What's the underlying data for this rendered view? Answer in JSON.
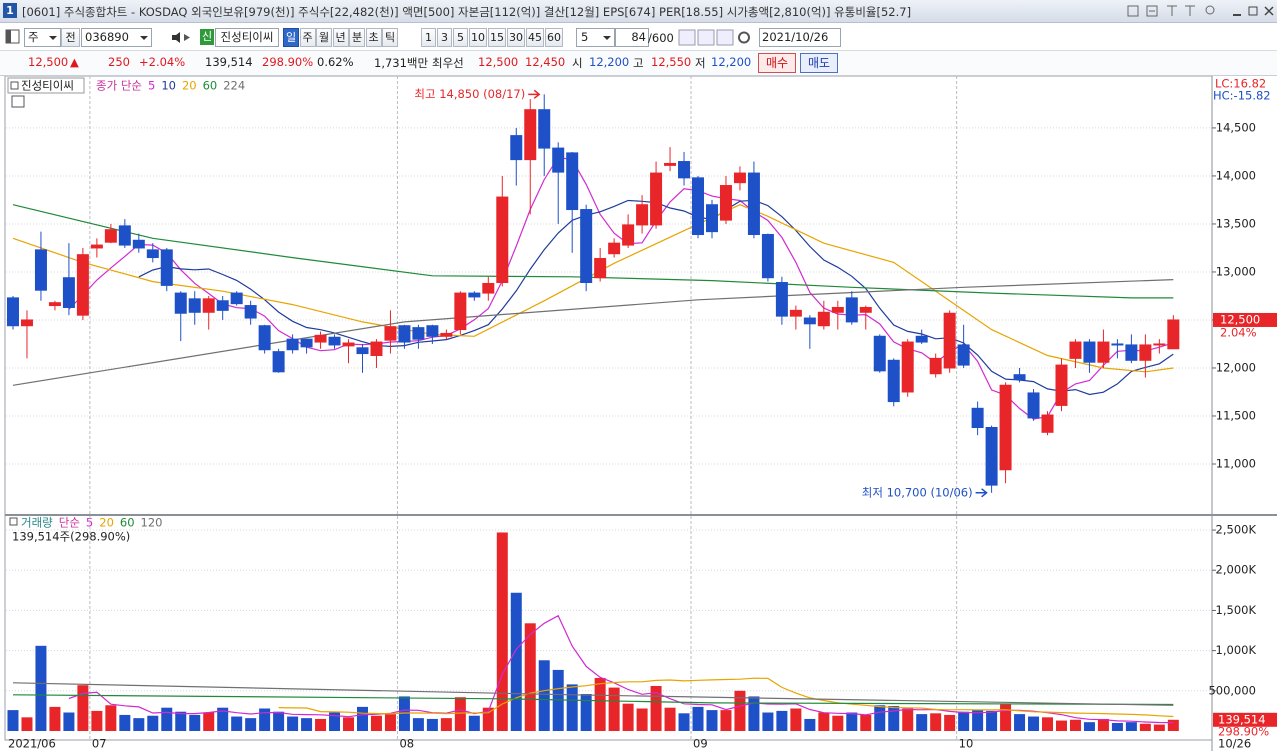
{
  "window": {
    "number": "1",
    "title": "[0601] 주식종합차트 - KOSDAQ 외국인보유[979(천)] 주식수[22,482(천)] 액면[500] 자본금[112(억)] 결산[12월] EPS[674] PER[18.55] 시가총액[2,810(억)] 유통비율[52.7]"
  },
  "toolbar": {
    "period": "주",
    "prev": "전",
    "code": "036890",
    "badge": "신",
    "name": "진성티이씨",
    "intervals": [
      "일",
      "주",
      "월",
      "년",
      "분",
      "초",
      "틱"
    ],
    "counts": [
      "1",
      "3",
      "5",
      "10",
      "15",
      "30",
      "45",
      "60"
    ],
    "step": "5",
    "shown": "84",
    "total": "/600",
    "date": "2021/10/26"
  },
  "quote": {
    "price": "12,500",
    "arrow": "▲",
    "change": "250",
    "change_pct": "+2.04%",
    "volume": "139,514",
    "volume_ratio": "298.90%",
    "turnover": "0.62%",
    "amount": "1,731백만",
    "best_label": "최우선",
    "ask": "12,500",
    "bid": "12,450",
    "open_label": "시",
    "open": "12,200",
    "high_label": "고",
    "high": "12,550",
    "low_label": "저",
    "low": "12,200",
    "buy": "매수",
    "sell": "매도"
  },
  "chart_data": [
    {
      "type": "candlestick",
      "title": "진성티이씨",
      "legend_label": "종가 단순",
      "up_color": "#e8262a",
      "down_color": "#1e50c8",
      "open": [
        12730,
        12440,
        13230,
        12650,
        12940,
        12550,
        13250,
        13310,
        13480,
        13330,
        13230,
        13230,
        12780,
        12720,
        12580,
        12700,
        12780,
        12650,
        12440,
        12170,
        12300,
        12300,
        12270,
        12320,
        12230,
        12210,
        12130,
        12290,
        12440,
        12420,
        12440,
        12330,
        12400,
        12780,
        12780,
        12890,
        14420,
        14170,
        14690,
        14290,
        14240,
        13650,
        12940,
        13190,
        13280,
        13490,
        13490,
        14110,
        14150,
        13980,
        13700,
        13540,
        13930,
        14030,
        13390,
        12890,
        12540,
        12520,
        12440,
        12580,
        12730,
        12580,
        12330,
        12080,
        11750,
        12330,
        11940,
        12000,
        12240,
        11580,
        11380,
        10940,
        11930,
        11740,
        11330,
        11610,
        12100,
        12270,
        12060,
        12250,
        12240,
        12080,
        12240,
        12200
      ],
      "high": [
        12750,
        12600,
        13420,
        12700,
        13300,
        13250,
        13350,
        13500,
        13550,
        13400,
        13300,
        13250,
        12800,
        12800,
        12750,
        12750,
        12800,
        12700,
        12450,
        12200,
        12350,
        12300,
        12380,
        12350,
        12300,
        12250,
        12300,
        12600,
        12450,
        12450,
        12450,
        12400,
        12800,
        12800,
        12950,
        14000,
        14500,
        14800,
        14850,
        14350,
        14250,
        13700,
        13250,
        13350,
        13600,
        13800,
        14150,
        14300,
        14250,
        14000,
        13750,
        14000,
        14100,
        14150,
        13400,
        12950,
        12650,
        12550,
        12700,
        12700,
        12800,
        12650,
        12350,
        12100,
        12300,
        12400,
        12150,
        12600,
        12450,
        11650,
        11400,
        11850,
        12000,
        11780,
        11550,
        12100,
        12300,
        12300,
        12400,
        12300,
        12350,
        12350,
        12300,
        12550
      ],
      "low": [
        12400,
        12100,
        12700,
        12600,
        12550,
        12500,
        13150,
        13300,
        13250,
        13200,
        13100,
        12800,
        12280,
        12450,
        12400,
        12500,
        12650,
        12450,
        12150,
        11950,
        12150,
        12150,
        12200,
        12200,
        12050,
        11950,
        12000,
        12150,
        12200,
        12200,
        12250,
        12300,
        12350,
        12700,
        12700,
        12850,
        13900,
        13600,
        14000,
        13500,
        13200,
        12800,
        12900,
        13150,
        13250,
        13400,
        13450,
        14050,
        13900,
        13350,
        13350,
        13500,
        13850,
        13350,
        12900,
        12450,
        12400,
        12200,
        12400,
        12400,
        12450,
        12400,
        11950,
        11600,
        11700,
        12250,
        11900,
        11950,
        12000,
        11300,
        10700,
        10800,
        11850,
        11450,
        11300,
        11550,
        12000,
        11950,
        12000,
        12100,
        12050,
        11900,
        12150,
        12200
      ],
      "close": [
        12440,
        12500,
        12810,
        12680,
        12630,
        13180,
        13280,
        13440,
        13280,
        13250,
        13150,
        12860,
        12570,
        12580,
        12720,
        12600,
        12670,
        12520,
        12190,
        11960,
        12190,
        12220,
        12340,
        12240,
        12260,
        12150,
        12270,
        12430,
        12270,
        12300,
        12330,
        12360,
        12780,
        12740,
        12880,
        13780,
        14170,
        14690,
        14290,
        14040,
        13650,
        12890,
        13140,
        13300,
        13490,
        13700,
        14030,
        14130,
        13980,
        13390,
        13420,
        13900,
        14030,
        13390,
        12940,
        12540,
        12600,
        12460,
        12580,
        12630,
        12480,
        12630,
        11970,
        11650,
        12270,
        12270,
        12100,
        12570,
        12030,
        11380,
        10780,
        11820,
        11880,
        11480,
        11510,
        12030,
        12270,
        12060,
        12270,
        12240,
        12080,
        12240,
        12250,
        12500
      ],
      "ma": [
        {
          "name": "5",
          "color": "#d22ad2"
        },
        {
          "name": "10",
          "color": "#1e3c9c"
        },
        {
          "name": "20",
          "color": "#e8a400",
          "x": [
            0,
            5,
            10,
            15,
            20,
            25,
            30,
            33,
            38,
            43,
            48,
            52,
            54,
            58,
            63,
            67,
            70,
            74,
            78,
            81,
            83
          ],
          "values": [
            13350,
            13100,
            12900,
            12800,
            12660,
            12480,
            12350,
            12330,
            12700,
            13090,
            13430,
            13700,
            13580,
            13300,
            13100,
            12700,
            12400,
            12130,
            12000,
            11960,
            12000
          ]
        },
        {
          "name": "60",
          "color": "#1f8a3a",
          "x": [
            0,
            10,
            20,
            30,
            40,
            50,
            60,
            70,
            80,
            83
          ],
          "values": [
            13700,
            13350,
            13150,
            12960,
            12950,
            12910,
            12840,
            12780,
            12730,
            12730
          ]
        },
        {
          "name": "224",
          "color": "#707070",
          "x": [
            0,
            28,
            49,
            68,
            83
          ],
          "values": [
            11820,
            12480,
            12710,
            12840,
            12920
          ]
        }
      ],
      "ylim": [
        10500,
        15020
      ],
      "yticks": [
        {
          "value": 11000,
          "label": "11,000"
        },
        {
          "value": 11500,
          "label": "11,500"
        },
        {
          "value": 12000,
          "label": "12,000"
        },
        {
          "value": 12500,
          "label": "12,500"
        },
        {
          "value": 13000,
          "label": "13,000"
        },
        {
          "value": 13500,
          "label": "13,500"
        },
        {
          "value": 14000,
          "label": "14,000"
        },
        {
          "value": 14500,
          "label": "14,500"
        }
      ],
      "grid": true,
      "annotations": [
        {
          "text": "최고 14,850 (08/17)",
          "x": 38,
          "value": 14850,
          "color": "#e8262a"
        },
        {
          "text": "최저 10,700 (10/06)",
          "x": 70,
          "value": 10700,
          "color": "#1e50c8"
        }
      ],
      "lc": "LC:16.82",
      "hc": "HC:-15.82",
      "last_label": "12,500",
      "last_pct": "2.04%"
    },
    {
      "type": "bar",
      "title": "거래량",
      "legend_label": "단순",
      "info": "139,514주(298.90%)",
      "categories": [
        "2021/06",
        null,
        null,
        null,
        null,
        null,
        "07",
        null,
        null,
        null,
        null,
        null,
        null,
        null,
        null,
        null,
        null,
        null,
        null,
        null,
        null,
        null,
        null,
        null,
        null,
        null,
        null,
        null,
        "08",
        null,
        null,
        null,
        null,
        null,
        null,
        null,
        null,
        null,
        null,
        null,
        null,
        null,
        null,
        null,
        null,
        null,
        null,
        null,
        null,
        "09",
        null,
        null,
        null,
        null,
        null,
        null,
        null,
        null,
        null,
        null,
        null,
        null,
        null,
        null,
        null,
        null,
        null,
        null,
        "10",
        null,
        null,
        null,
        null,
        null,
        null,
        null,
        null,
        null,
        null,
        null,
        null,
        null,
        null,
        null
      ],
      "end_label": "10/26",
      "values": [
        260000,
        170000,
        1060000,
        300000,
        230000,
        570000,
        250000,
        320000,
        200000,
        160000,
        190000,
        290000,
        240000,
        200000,
        230000,
        290000,
        180000,
        160000,
        280000,
        240000,
        180000,
        160000,
        150000,
        230000,
        170000,
        300000,
        190000,
        210000,
        430000,
        160000,
        150000,
        160000,
        420000,
        190000,
        290000,
        2470000,
        1720000,
        1340000,
        880000,
        760000,
        580000,
        460000,
        660000,
        540000,
        340000,
        280000,
        560000,
        290000,
        220000,
        300000,
        260000,
        260000,
        500000,
        430000,
        230000,
        250000,
        280000,
        150000,
        230000,
        190000,
        230000,
        200000,
        320000,
        310000,
        280000,
        210000,
        220000,
        200000,
        240000,
        260000,
        250000,
        330000,
        210000,
        180000,
        170000,
        130000,
        140000,
        110000,
        150000,
        100000,
        110000,
        90000,
        80000,
        139514
      ],
      "ma": [
        {
          "name": "5",
          "color": "#d22ad2"
        },
        {
          "name": "20",
          "color": "#e8a400"
        },
        {
          "name": "60",
          "color": "#1f8a3a",
          "x": [
            0,
            35,
            50,
            83
          ],
          "values": [
            450000,
            400000,
            350000,
            330000
          ]
        },
        {
          "name": "120",
          "color": "#707070",
          "x": [
            0,
            40,
            83
          ],
          "values": [
            600000,
            450000,
            320000
          ]
        }
      ],
      "ylim": [
        0,
        2650000
      ],
      "yticks": [
        {
          "value": 500000,
          "label": "500,000"
        },
        {
          "value": 1000000,
          "label": "1,000K"
        },
        {
          "value": 1500000,
          "label": "1,500K"
        },
        {
          "value": 2000000,
          "label": "2,000K"
        },
        {
          "value": 2500000,
          "label": "2,500K"
        }
      ],
      "grid": true,
      "last_label": "139,514",
      "last_pct": "298.90%"
    }
  ]
}
